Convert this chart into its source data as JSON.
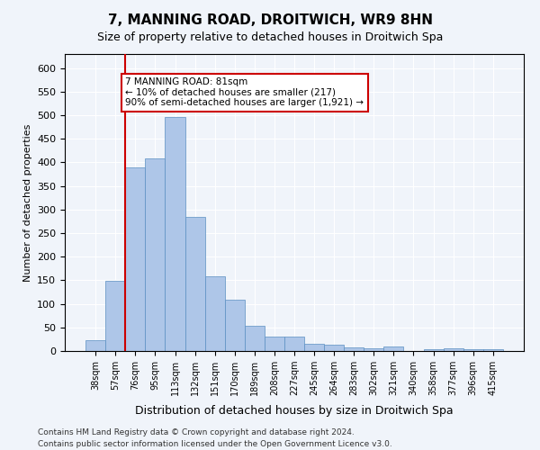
{
  "title": "7, MANNING ROAD, DROITWICH, WR9 8HN",
  "subtitle": "Size of property relative to detached houses in Droitwich Spa",
  "xlabel": "Distribution of detached houses by size in Droitwich Spa",
  "ylabel": "Number of detached properties",
  "bar_color": "#aec6e8",
  "bar_edge_color": "#5a8fc2",
  "categories": [
    "38sqm",
    "57sqm",
    "76sqm",
    "95sqm",
    "113sqm",
    "132sqm",
    "151sqm",
    "170sqm",
    "189sqm",
    "208sqm",
    "227sqm",
    "245sqm",
    "264sqm",
    "283sqm",
    "302sqm",
    "321sqm",
    "340sqm",
    "358sqm",
    "377sqm",
    "396sqm",
    "415sqm"
  ],
  "values": [
    23,
    148,
    390,
    408,
    497,
    285,
    158,
    108,
    53,
    30,
    30,
    16,
    13,
    7,
    6,
    10,
    0,
    4,
    5,
    4,
    4
  ],
  "ylim": [
    0,
    630
  ],
  "yticks": [
    0,
    50,
    100,
    150,
    200,
    250,
    300,
    350,
    400,
    450,
    500,
    550,
    600
  ],
  "vline_x": 2,
  "vline_color": "#cc0000",
  "annotation_text": "7 MANNING ROAD: 81sqm\n← 10% of detached houses are smaller (217)\n90% of semi-detached houses are larger (1,921) →",
  "annotation_box_color": "#ffffff",
  "annotation_box_edge": "#cc0000",
  "footer1": "Contains HM Land Registry data © Crown copyright and database right 2024.",
  "footer2": "Contains public sector information licensed under the Open Government Licence v3.0.",
  "background_color": "#f0f4fa",
  "grid_color": "#ffffff"
}
